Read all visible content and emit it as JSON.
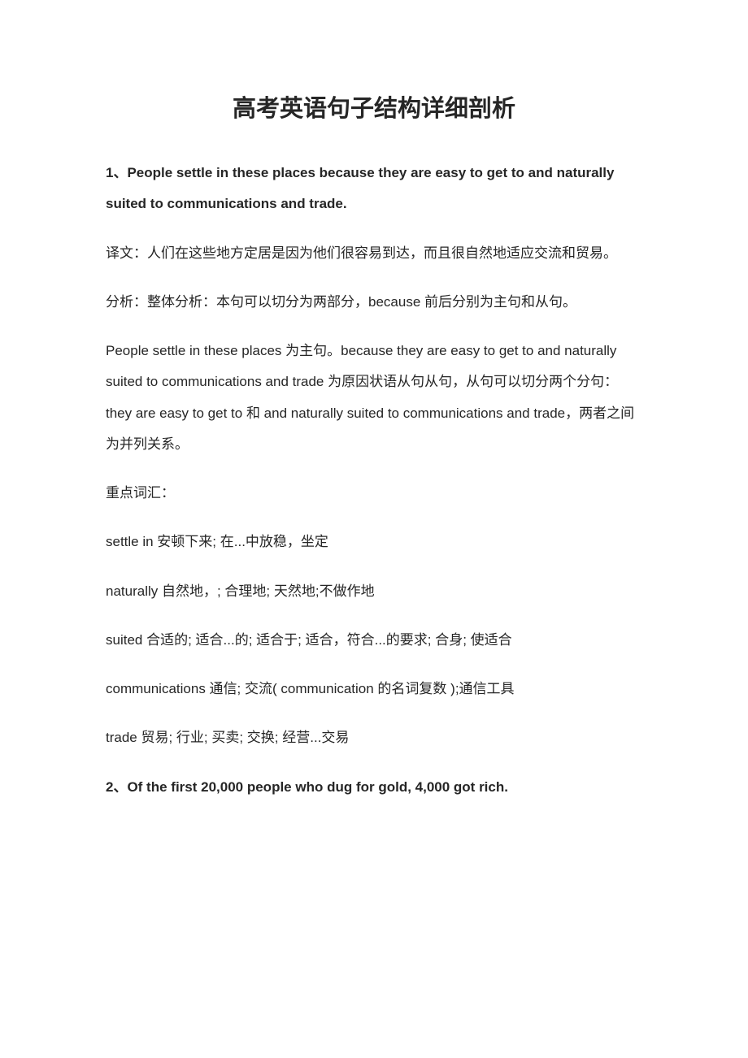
{
  "title": {
    "text": "高考英语句子结构详细剖析",
    "fontsize": 29,
    "color": "#262626"
  },
  "body": {
    "fontsize": 17,
    "color": "#262626",
    "line_height": 2.25
  },
  "section1": {
    "heading": "1、People settle in these places because they are easy to get to and naturally suited to communications and trade.",
    "translation": "译文：人们在这些地方定居是因为他们很容易到达，而且很自然地适应交流和贸易。",
    "analysis_overall": "分析：整体分析：本句可以切分为两部分，because 前后分别为主句和从句。",
    "analysis_detail": "People settle in these places 为主句。because they are easy to get to and naturally suited to communications and trade 为原因状语从句从句，从句可以切分两个分句：they are easy to get to 和 and naturally suited to communications and trade，两者之间为并列关系。",
    "vocab_label": "重点词汇：",
    "vocab": [
      "settle in 安顿下来;  在...中放稳，坐定",
      "naturally 自然地，;  合理地;  天然地;不做作地",
      "suited 合适的;  适合...的;  适合于;  适合，符合...的要求;  合身;  使适合",
      "communications 通信;  交流( communication 的名词复数  );通信工具",
      "trade 贸易;  行业;  买卖;  交换;  经营...交易"
    ]
  },
  "section2": {
    "heading": "2、Of the first 20,000 people who dug for gold, 4,000 got rich."
  }
}
